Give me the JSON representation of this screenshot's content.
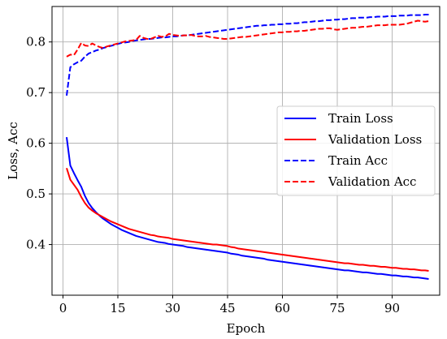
{
  "chart_data": {
    "type": "line",
    "xlabel": "Epoch",
    "ylabel": "Loss, Acc",
    "xlim": [
      -3,
      103
    ],
    "ylim": [
      0.3,
      0.87
    ],
    "xticks": [
      0,
      15,
      30,
      45,
      60,
      75,
      90
    ],
    "yticks": [
      0.4,
      0.5,
      0.6,
      0.7,
      0.8
    ],
    "grid": true,
    "legend_position": "center-right",
    "x": [
      1,
      2,
      3,
      4,
      5,
      6,
      7,
      8,
      9,
      10,
      11,
      12,
      13,
      14,
      15,
      16,
      17,
      18,
      19,
      20,
      21,
      22,
      23,
      24,
      25,
      26,
      27,
      28,
      29,
      30,
      31,
      32,
      33,
      34,
      35,
      36,
      37,
      38,
      39,
      40,
      41,
      42,
      43,
      44,
      45,
      46,
      47,
      48,
      49,
      50,
      51,
      52,
      53,
      54,
      55,
      56,
      57,
      58,
      59,
      60,
      61,
      62,
      63,
      64,
      65,
      66,
      67,
      68,
      69,
      70,
      71,
      72,
      73,
      74,
      75,
      76,
      77,
      78,
      79,
      80,
      81,
      82,
      83,
      84,
      85,
      86,
      87,
      88,
      89,
      90,
      91,
      92,
      93,
      94,
      95,
      96,
      97,
      98,
      99,
      100
    ],
    "series": [
      {
        "name": "Train Loss",
        "color": "#0000ff",
        "dash": "solid",
        "values": [
          0.612,
          0.556,
          0.541,
          0.527,
          0.514,
          0.496,
          0.482,
          0.472,
          0.464,
          0.457,
          0.451,
          0.446,
          0.441,
          0.437,
          0.433,
          0.429,
          0.426,
          0.423,
          0.42,
          0.417,
          0.415,
          0.413,
          0.411,
          0.409,
          0.407,
          0.405,
          0.404,
          0.403,
          0.401,
          0.4,
          0.399,
          0.398,
          0.397,
          0.395,
          0.394,
          0.393,
          0.392,
          0.391,
          0.39,
          0.389,
          0.388,
          0.387,
          0.386,
          0.385,
          0.384,
          0.382,
          0.381,
          0.38,
          0.378,
          0.377,
          0.376,
          0.375,
          0.374,
          0.373,
          0.372,
          0.37,
          0.369,
          0.368,
          0.367,
          0.366,
          0.365,
          0.364,
          0.363,
          0.362,
          0.361,
          0.36,
          0.359,
          0.358,
          0.357,
          0.356,
          0.355,
          0.354,
          0.353,
          0.352,
          0.351,
          0.35,
          0.349,
          0.349,
          0.348,
          0.347,
          0.346,
          0.345,
          0.345,
          0.344,
          0.343,
          0.342,
          0.342,
          0.341,
          0.34,
          0.339,
          0.339,
          0.338,
          0.337,
          0.337,
          0.336,
          0.335,
          0.335,
          0.334,
          0.333,
          0.332
        ]
      },
      {
        "name": "Validation Loss",
        "color": "#ff0000",
        "dash": "solid",
        "values": [
          0.551,
          0.528,
          0.518,
          0.508,
          0.494,
          0.482,
          0.473,
          0.467,
          0.462,
          0.458,
          0.454,
          0.45,
          0.446,
          0.443,
          0.44,
          0.437,
          0.434,
          0.431,
          0.429,
          0.427,
          0.425,
          0.423,
          0.421,
          0.419,
          0.418,
          0.416,
          0.415,
          0.414,
          0.413,
          0.411,
          0.41,
          0.409,
          0.408,
          0.407,
          0.406,
          0.405,
          0.404,
          0.403,
          0.402,
          0.401,
          0.4,
          0.4,
          0.399,
          0.398,
          0.397,
          0.395,
          0.394,
          0.392,
          0.391,
          0.39,
          0.389,
          0.388,
          0.387,
          0.386,
          0.385,
          0.384,
          0.383,
          0.382,
          0.381,
          0.38,
          0.379,
          0.378,
          0.377,
          0.376,
          0.375,
          0.374,
          0.373,
          0.372,
          0.371,
          0.37,
          0.369,
          0.368,
          0.367,
          0.366,
          0.365,
          0.364,
          0.363,
          0.363,
          0.362,
          0.361,
          0.36,
          0.36,
          0.359,
          0.358,
          0.358,
          0.357,
          0.356,
          0.356,
          0.355,
          0.354,
          0.354,
          0.353,
          0.352,
          0.352,
          0.351,
          0.351,
          0.35,
          0.349,
          0.349,
          0.348
        ]
      },
      {
        "name": "Train Acc",
        "color": "#0000ff",
        "dash": "dashed",
        "values": [
          0.694,
          0.75,
          0.756,
          0.76,
          0.763,
          0.771,
          0.777,
          0.78,
          0.783,
          0.785,
          0.788,
          0.79,
          0.792,
          0.794,
          0.796,
          0.798,
          0.799,
          0.8,
          0.802,
          0.803,
          0.804,
          0.805,
          0.806,
          0.806,
          0.807,
          0.808,
          0.809,
          0.809,
          0.81,
          0.811,
          0.811,
          0.812,
          0.813,
          0.813,
          0.814,
          0.815,
          0.816,
          0.817,
          0.818,
          0.819,
          0.82,
          0.821,
          0.822,
          0.823,
          0.824,
          0.825,
          0.826,
          0.827,
          0.828,
          0.829,
          0.83,
          0.831,
          0.832,
          0.832,
          0.833,
          0.833,
          0.834,
          0.834,
          0.835,
          0.835,
          0.836,
          0.836,
          0.837,
          0.837,
          0.838,
          0.839,
          0.839,
          0.84,
          0.841,
          0.841,
          0.842,
          0.843,
          0.843,
          0.844,
          0.844,
          0.845,
          0.845,
          0.846,
          0.847,
          0.847,
          0.848,
          0.848,
          0.848,
          0.849,
          0.849,
          0.85,
          0.85,
          0.85,
          0.851,
          0.851,
          0.851,
          0.852,
          0.852,
          0.852,
          0.853,
          0.853,
          0.853,
          0.853,
          0.854,
          0.854
        ]
      },
      {
        "name": "Validation Acc",
        "color": "#ff0000",
        "dash": "dashed",
        "values": [
          0.771,
          0.775,
          0.774,
          0.785,
          0.798,
          0.793,
          0.792,
          0.797,
          0.793,
          0.79,
          0.788,
          0.791,
          0.793,
          0.795,
          0.797,
          0.799,
          0.801,
          0.802,
          0.803,
          0.804,
          0.812,
          0.808,
          0.806,
          0.806,
          0.809,
          0.812,
          0.81,
          0.811,
          0.816,
          0.814,
          0.813,
          0.812,
          0.813,
          0.813,
          0.814,
          0.812,
          0.811,
          0.811,
          0.812,
          0.81,
          0.809,
          0.808,
          0.807,
          0.806,
          0.806,
          0.807,
          0.808,
          0.809,
          0.81,
          0.81,
          0.811,
          0.812,
          0.813,
          0.814,
          0.815,
          0.816,
          0.817,
          0.818,
          0.819,
          0.819,
          0.82,
          0.82,
          0.821,
          0.821,
          0.822,
          0.822,
          0.823,
          0.824,
          0.825,
          0.826,
          0.826,
          0.827,
          0.827,
          0.825,
          0.824,
          0.825,
          0.826,
          0.827,
          0.828,
          0.828,
          0.829,
          0.83,
          0.83,
          0.831,
          0.832,
          0.833,
          0.833,
          0.833,
          0.834,
          0.834,
          0.834,
          0.834,
          0.835,
          0.836,
          0.838,
          0.84,
          0.842,
          0.841,
          0.84,
          0.841
        ]
      }
    ]
  }
}
